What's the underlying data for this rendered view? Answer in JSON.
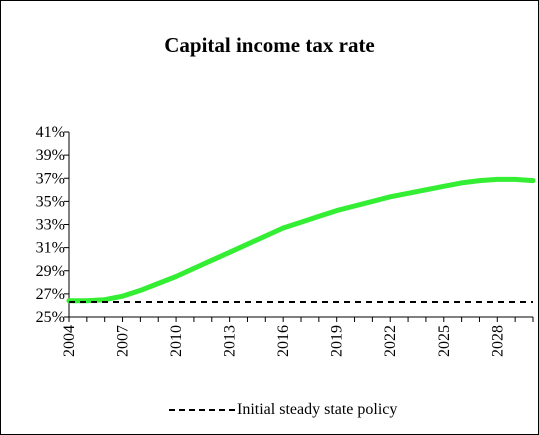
{
  "chart_data": {
    "type": "line",
    "title": "Capital income tax rate",
    "xlabel": "",
    "ylabel": "",
    "x_range": [
      2004,
      2030
    ],
    "ylim": [
      25,
      41
    ],
    "y_ticks": [
      25,
      27,
      29,
      31,
      33,
      35,
      37,
      39,
      41
    ],
    "y_tick_labels": [
      "25%",
      "27%",
      "29%",
      "31%",
      "33%",
      "35%",
      "37%",
      "39%",
      "41%"
    ],
    "x_ticks": [
      2004,
      2007,
      2010,
      2013,
      2016,
      2019,
      2022,
      2025,
      2028
    ],
    "x_tick_labels": [
      "2004",
      "2007",
      "2010",
      "2013",
      "2016",
      "2019",
      "2022",
      "2025",
      "2028"
    ],
    "grid": false,
    "legend_position": "bottom",
    "series": [
      {
        "name": "",
        "color": "#33ee33",
        "style": "solid",
        "x": [
          2004,
          2005,
          2006,
          2007,
          2008,
          2009,
          2010,
          2011,
          2012,
          2013,
          2014,
          2015,
          2016,
          2017,
          2018,
          2019,
          2020,
          2021,
          2022,
          2023,
          2024,
          2025,
          2026,
          2027,
          2028,
          2029,
          2030
        ],
        "values": [
          26.4,
          26.4,
          26.5,
          26.8,
          27.3,
          27.9,
          28.5,
          29.2,
          29.9,
          30.6,
          31.3,
          32.0,
          32.7,
          33.2,
          33.7,
          34.2,
          34.6,
          35.0,
          35.4,
          35.7,
          36.0,
          36.3,
          36.6,
          36.8,
          36.9,
          36.9,
          36.8
        ]
      },
      {
        "name": "Initial steady state policy",
        "color": "#000000",
        "style": "dashed",
        "x": [
          2004,
          2030
        ],
        "values": [
          26.3,
          26.3
        ]
      }
    ]
  }
}
